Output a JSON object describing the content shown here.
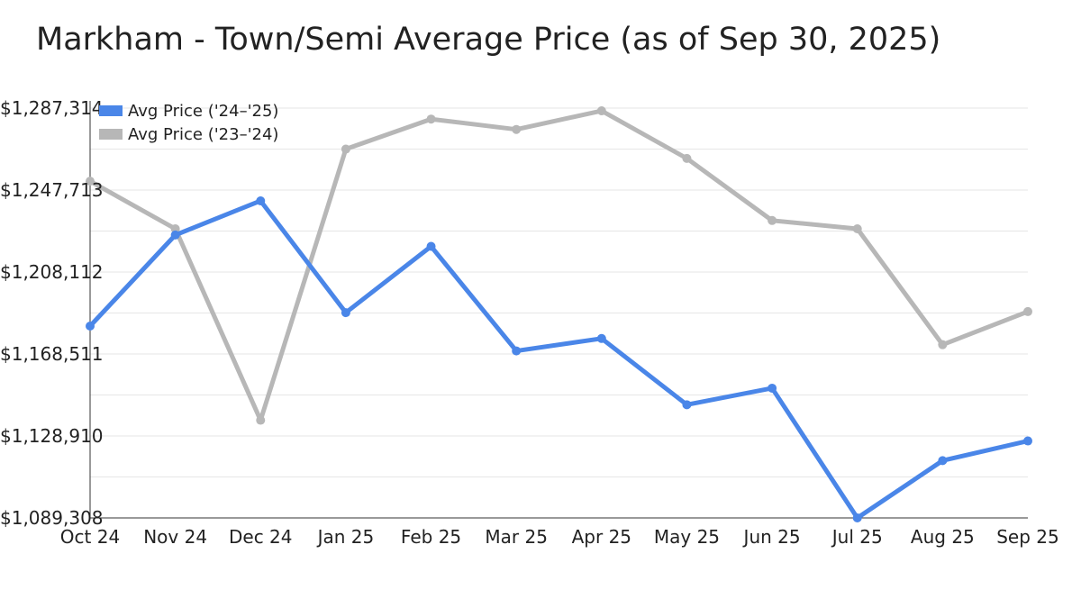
{
  "chart_data": {
    "type": "line",
    "title": "Markham - Town/Semi Average Price (as of Sep 30, 2025)",
    "xlabel": "",
    "ylabel": "",
    "categories": [
      "Oct 24",
      "Nov 24",
      "Dec 24",
      "Jan 25",
      "Feb 25",
      "Mar 25",
      "Apr 25",
      "May 25",
      "Jun 25",
      "Jul 25",
      "Aug 25",
      "Sep 25"
    ],
    "ylim": [
      1089308,
      1287314
    ],
    "yticks": [
      1089308,
      1128910,
      1168511,
      1208112,
      1247713,
      1287314
    ],
    "ytick_labels": [
      "$1,089,308",
      "$1,128,910",
      "$1,168,511",
      "$1,208,112",
      "$1,247,713",
      "$1,287,314"
    ],
    "grid": true,
    "legend_position": "top-left",
    "series": [
      {
        "name": "Avg Price ('24–'25)",
        "color": "#4a86e8",
        "values": [
          1182000,
          1226000,
          1242500,
          1188500,
          1220500,
          1170000,
          1176000,
          1144000,
          1152000,
          1089308,
          1117000,
          1126500
        ]
      },
      {
        "name": "Avg Price ('23–'24)",
        "color": "#b7b7b7",
        "values": [
          1252000,
          1229000,
          1136500,
          1267500,
          1282000,
          1277000,
          1286000,
          1263000,
          1233000,
          1229000,
          1173000,
          1189000
        ]
      }
    ]
  }
}
